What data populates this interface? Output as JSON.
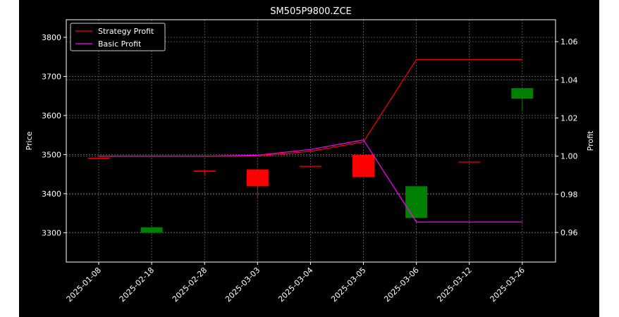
{
  "chart_data": {
    "type": "candlestick",
    "title": "SM505P9800.ZCE",
    "xlabel": "",
    "ylabel": "Price",
    "y2label": "Profit",
    "categories": [
      "2025-01-08",
      "2025-02-18",
      "2025-02-28",
      "2025-03-03",
      "2025-03-04",
      "2025-03-05",
      "2025-03-06",
      "2025-03-12",
      "2025-03-26"
    ],
    "ylim": [
      3225,
      3845
    ],
    "y2lim": [
      0.9445,
      1.0715
    ],
    "yticks": [
      3300,
      3400,
      3500,
      3600,
      3700,
      3800
    ],
    "y2ticks": [
      "0.96",
      "0.98",
      "1.00",
      "1.02",
      "1.04",
      "1.06"
    ],
    "y2tick_values": [
      0.96,
      0.98,
      1.0,
      1.02,
      1.04,
      1.06
    ],
    "grid": true,
    "legend_position": "top-left",
    "candles": [
      {
        "date": "2025-01-08",
        "open": 3492,
        "high": 3492,
        "low": 3492,
        "close": 3492,
        "color": "#ff0000"
      },
      {
        "date": "2025-02-18",
        "open": 3300,
        "high": 3314,
        "low": 3299,
        "close": 3314,
        "color": "#008000"
      },
      {
        "date": "2025-02-28",
        "open": 3459,
        "high": 3459,
        "low": 3448,
        "close": 3456,
        "color": "#ff0000"
      },
      {
        "date": "2025-03-03",
        "open": 3462,
        "high": 3462,
        "low": 3390,
        "close": 3419,
        "color": "#ff0000"
      },
      {
        "date": "2025-03-04",
        "open": 3471,
        "high": 3471,
        "low": 3471,
        "close": 3470,
        "color": "#ff0000"
      },
      {
        "date": "2025-03-05",
        "open": 3499,
        "high": 3499,
        "low": 3443,
        "close": 3443,
        "color": "#ff0000"
      },
      {
        "date": "2025-03-06",
        "open": 3338,
        "high": 3419,
        "low": 3338,
        "close": 3419,
        "color": "#008000"
      },
      {
        "date": "2025-03-12",
        "open": 3482,
        "high": 3482,
        "low": 3481,
        "close": 3481,
        "color": "#ff0000"
      },
      {
        "date": "2025-03-26",
        "open": 3643,
        "high": 3670,
        "low": 3610,
        "close": 3670,
        "color": "#008000"
      }
    ],
    "series": [
      {
        "name": "Strategy Profit",
        "color": "#ff0000",
        "axis": "right",
        "values": [
          1.0,
          1.0,
          1.0,
          1.0,
          1.0025,
          1.0075,
          1.0507,
          1.0507,
          1.0507
        ]
      },
      {
        "name": "Basic Profit",
        "color": "#ff00ff",
        "axis": "right",
        "values": [
          1.0,
          1.0,
          1.0,
          1.0005,
          1.0035,
          1.0085,
          0.9655,
          0.9655,
          0.9655
        ]
      }
    ]
  }
}
